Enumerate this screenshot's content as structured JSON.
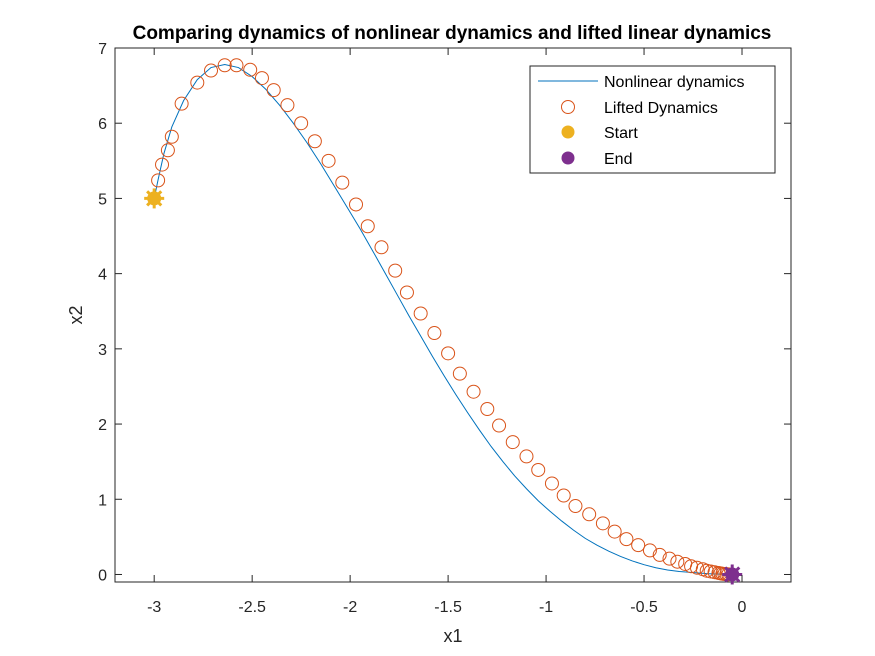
{
  "chart_data": {
    "type": "line",
    "title": "Comparing dynamics of nonlinear dynamics and lifted linear dynamics",
    "xlabel": "x1",
    "ylabel": "x2",
    "xlim": [
      -3.2,
      0.25
    ],
    "ylim": [
      -0.1,
      7
    ],
    "xticks": [
      -3,
      -2.5,
      -2,
      -1.5,
      -1,
      -0.5,
      0
    ],
    "xtick_labels": [
      "-3",
      "-2.5",
      "-2",
      "-1.5",
      "-1",
      "-0.5",
      "0"
    ],
    "yticks": [
      0,
      1,
      2,
      3,
      4,
      5,
      6,
      7
    ],
    "ytick_labels": [
      "0",
      "1",
      "2",
      "3",
      "4",
      "5",
      "6",
      "7"
    ],
    "grid": false,
    "legend_position": "top-right",
    "legend": [
      {
        "label": "Nonlinear dynamics",
        "marker": "line",
        "color": "#0072BD"
      },
      {
        "label": "Lifted Dynamics",
        "marker": "open-circle",
        "color": "#D95319"
      },
      {
        "label": "Start",
        "marker": "filled-circle",
        "color": "#EDB120"
      },
      {
        "label": "End",
        "marker": "filled-circle",
        "color": "#7E2F8E"
      }
    ],
    "series": [
      {
        "name": "Nonlinear dynamics",
        "color": "#0072BD",
        "x": [
          -3.0,
          -2.98,
          -2.95,
          -2.91,
          -2.85,
          -2.78,
          -2.71,
          -2.64,
          -2.57,
          -2.5,
          -2.43,
          -2.36,
          -2.29,
          -2.22,
          -2.15,
          -2.08,
          -2.01,
          -1.95,
          -1.88,
          -1.82,
          -1.76,
          -1.7,
          -1.64,
          -1.58,
          -1.52,
          -1.46,
          -1.4,
          -1.34,
          -1.28,
          -1.22,
          -1.16,
          -1.1,
          -1.04,
          -0.98,
          -0.92,
          -0.86,
          -0.8,
          -0.74,
          -0.68,
          -0.62,
          -0.56,
          -0.5,
          -0.44,
          -0.38,
          -0.32,
          -0.27,
          -0.22,
          -0.18,
          -0.14,
          -0.11,
          -0.09,
          -0.07
        ],
        "y": [
          5.0,
          5.25,
          5.6,
          5.95,
          6.3,
          6.58,
          6.74,
          6.78,
          6.74,
          6.62,
          6.45,
          6.24,
          6.0,
          5.74,
          5.46,
          5.16,
          4.86,
          4.6,
          4.28,
          4.0,
          3.72,
          3.44,
          3.17,
          2.9,
          2.64,
          2.39,
          2.15,
          1.92,
          1.7,
          1.5,
          1.31,
          1.14,
          0.98,
          0.84,
          0.71,
          0.59,
          0.48,
          0.39,
          0.31,
          0.24,
          0.18,
          0.13,
          0.09,
          0.06,
          0.04,
          0.03,
          0.02,
          0.012,
          0.007,
          0.004,
          0.002,
          0.0
        ]
      },
      {
        "name": "Lifted Dynamics",
        "color": "#D95319",
        "x": [
          -2.98,
          -2.96,
          -2.93,
          -2.91,
          -2.86,
          -2.78,
          -2.71,
          -2.64,
          -2.58,
          -2.51,
          -2.45,
          -2.39,
          -2.32,
          -2.25,
          -2.18,
          -2.11,
          -2.04,
          -1.97,
          -1.91,
          -1.84,
          -1.77,
          -1.71,
          -1.64,
          -1.57,
          -1.5,
          -1.44,
          -1.37,
          -1.3,
          -1.24,
          -1.17,
          -1.1,
          -1.04,
          -0.97,
          -0.91,
          -0.85,
          -0.78,
          -0.71,
          -0.65,
          -0.59,
          -0.53,
          -0.47,
          -0.42,
          -0.37,
          -0.33,
          -0.29,
          -0.26,
          -0.23,
          -0.2,
          -0.18,
          -0.16,
          -0.14,
          -0.12,
          -0.11,
          -0.1,
          -0.09,
          -0.08,
          -0.07
        ],
        "y": [
          5.24,
          5.45,
          5.64,
          5.82,
          6.26,
          6.54,
          6.7,
          6.77,
          6.77,
          6.71,
          6.6,
          6.44,
          6.24,
          6.0,
          5.76,
          5.5,
          5.21,
          4.92,
          4.63,
          4.35,
          4.04,
          3.75,
          3.47,
          3.21,
          2.94,
          2.67,
          2.43,
          2.2,
          1.98,
          1.76,
          1.57,
          1.39,
          1.21,
          1.05,
          0.91,
          0.8,
          0.68,
          0.57,
          0.47,
          0.39,
          0.32,
          0.26,
          0.21,
          0.17,
          0.14,
          0.11,
          0.09,
          0.07,
          0.05,
          0.04,
          0.03,
          0.02,
          0.015,
          0.01,
          0.007,
          0.004,
          0.002
        ]
      },
      {
        "name": "Start",
        "color": "#EDB120",
        "x": [
          -3.0
        ],
        "y": [
          5.0
        ]
      },
      {
        "name": "End",
        "color": "#7E2F8E",
        "x": [
          -0.05
        ],
        "y": [
          0.0
        ]
      }
    ]
  }
}
